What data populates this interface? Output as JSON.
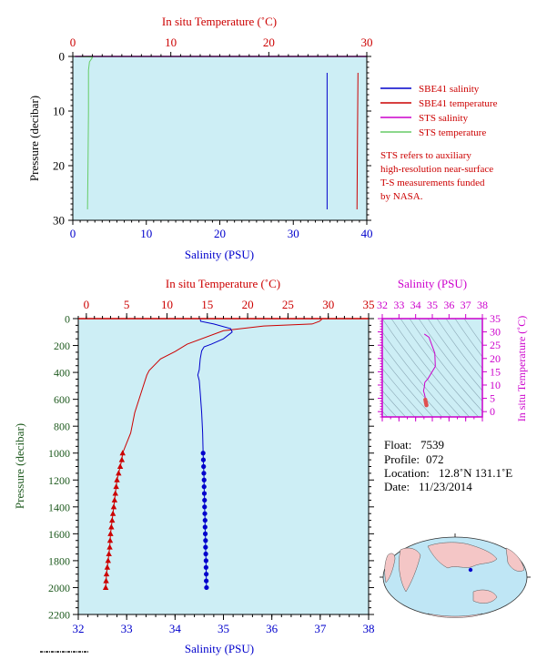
{
  "colors": {
    "plot_bg": "#cdeef5",
    "salinity": "#0000cc",
    "temperature": "#cc0000",
    "sts_salinity": "#cc00cc",
    "sts_temperature": "#66cc66",
    "pressure_label": "#1e5a1e",
    "ts_label": "#cc00cc"
  },
  "chart_data": [
    {
      "id": "near-surface",
      "type": "line",
      "top_axis_label": "In situ Temperature (˚C)",
      "bottom_axis_label": "Salinity (PSU)",
      "ylabel": "Pressure (decibar)",
      "temp_range": [
        0,
        30
      ],
      "temp_ticks": [
        "0",
        "10",
        "20",
        "30"
      ],
      "sal_range": [
        0,
        40
      ],
      "sal_ticks": [
        "0",
        "10",
        "20",
        "30",
        "40"
      ],
      "pressure_range": [
        0,
        30
      ],
      "pressure_ticks": [
        "0",
        "10",
        "20",
        "30"
      ],
      "legend": [
        {
          "label": "SBE41 salinity",
          "color": "#0000cc"
        },
        {
          "label": "SBE41 temperature",
          "color": "#cc0000"
        },
        {
          "label": "STS salinity",
          "color": "#cc00cc"
        },
        {
          "label": "STS temperature",
          "color": "#66cc66"
        }
      ],
      "note": [
        "STS refers to auxiliary",
        "high-resolution near-surface",
        "T-S measurements funded",
        "by NASA."
      ],
      "series": [
        {
          "var": "salinity",
          "color": "#0000cc",
          "points": [
            [
              34.6,
              3
            ],
            [
              34.6,
              28
            ]
          ]
        },
        {
          "var": "temperature",
          "color": "#cc0000",
          "points": [
            [
              29.1,
              3
            ],
            [
              29.05,
              15
            ],
            [
              29.0,
              28
            ]
          ]
        },
        {
          "var": "sts_salinity",
          "color": "#cc00cc",
          "points": [
            [
              0.3,
              0
            ],
            [
              40,
              0
            ]
          ]
        },
        {
          "var": "sts_temperature",
          "color": "#66cc66",
          "points": [
            [
              0.3,
              0
            ],
            [
              1.9,
              0.1
            ],
            [
              2.0,
              0.2
            ],
            [
              1.7,
              1
            ],
            [
              1.6,
              2.5
            ],
            [
              1.6,
              10
            ],
            [
              1.55,
              20
            ],
            [
              1.5,
              28
            ]
          ]
        }
      ]
    },
    {
      "id": "full-profile",
      "type": "line",
      "top_axis_label": "In situ Temperature (˚C)",
      "bottom_axis_label": "Salinity (PSU)",
      "ylabel": "Pressure (decibar)",
      "temp_range": [
        -1,
        35
      ],
      "temp_ticks": [
        "0",
        "5",
        "10",
        "15",
        "20",
        "25",
        "30",
        "35"
      ],
      "sal_range": [
        32,
        38
      ],
      "sal_ticks": [
        "32",
        "33",
        "34",
        "35",
        "36",
        "37",
        "38"
      ],
      "pressure_range": [
        0,
        2200
      ],
      "pressure_ticks": [
        "0",
        "200",
        "400",
        "600",
        "800",
        "1000",
        "1200",
        "1400",
        "1600",
        "1800",
        "2000",
        "2200"
      ],
      "temperature": [
        [
          29.2,
          5
        ],
        [
          28.9,
          20
        ],
        [
          28.0,
          40
        ],
        [
          22.0,
          55
        ],
        [
          17.0,
          90
        ],
        [
          12.5,
          190
        ],
        [
          11.0,
          245
        ],
        [
          9.2,
          300
        ],
        [
          7.8,
          385
        ],
        [
          7.5,
          420
        ],
        [
          6.8,
          550
        ],
        [
          6.0,
          700
        ],
        [
          5.5,
          850
        ],
        [
          4.5,
          1000
        ],
        [
          4.4,
          1050
        ],
        [
          4.2,
          1100
        ],
        [
          4.0,
          1150
        ],
        [
          3.8,
          1200
        ],
        [
          3.7,
          1250
        ],
        [
          3.6,
          1300
        ],
        [
          3.5,
          1350
        ],
        [
          3.4,
          1400
        ],
        [
          3.3,
          1450
        ],
        [
          3.2,
          1500
        ],
        [
          3.1,
          1550
        ],
        [
          3.0,
          1600
        ],
        [
          2.95,
          1650
        ],
        [
          2.9,
          1700
        ],
        [
          2.8,
          1750
        ],
        [
          2.7,
          1800
        ],
        [
          2.6,
          1850
        ],
        [
          2.5,
          1900
        ],
        [
          2.45,
          1950
        ],
        [
          2.4,
          2000
        ]
      ],
      "temperature_markers_from": 1000,
      "salinity": [
        [
          34.52,
          5
        ],
        [
          34.53,
          20
        ],
        [
          34.8,
          40
        ],
        [
          35.15,
          75
        ],
        [
          35.18,
          100
        ],
        [
          35.0,
          150
        ],
        [
          34.75,
          190
        ],
        [
          34.6,
          210
        ],
        [
          34.55,
          240
        ],
        [
          34.52,
          300
        ],
        [
          34.5,
          380
        ],
        [
          34.47,
          420
        ],
        [
          34.5,
          460
        ],
        [
          34.52,
          550
        ],
        [
          34.55,
          700
        ],
        [
          34.57,
          850
        ],
        [
          34.58,
          1000
        ],
        [
          34.585,
          1050
        ],
        [
          34.59,
          1100
        ],
        [
          34.595,
          1150
        ],
        [
          34.6,
          1200
        ],
        [
          34.6,
          1250
        ],
        [
          34.605,
          1300
        ],
        [
          34.61,
          1350
        ],
        [
          34.61,
          1400
        ],
        [
          34.615,
          1450
        ],
        [
          34.62,
          1500
        ],
        [
          34.62,
          1550
        ],
        [
          34.625,
          1600
        ],
        [
          34.63,
          1650
        ],
        [
          34.63,
          1700
        ],
        [
          34.635,
          1750
        ],
        [
          34.64,
          1800
        ],
        [
          34.64,
          1850
        ],
        [
          34.645,
          1900
        ],
        [
          34.645,
          1950
        ],
        [
          34.65,
          2000
        ]
      ],
      "salinity_markers_from": 1000
    },
    {
      "id": "ts-diagram",
      "type": "line",
      "top_axis_label": "Salinity (PSU)",
      "right_axis_label": "In situ Temperature (˚C)",
      "sal_range": [
        32,
        38
      ],
      "sal_ticks": [
        "32",
        "33",
        "34",
        "35",
        "36",
        "37",
        "38"
      ],
      "temp_range": [
        -2,
        35
      ],
      "temp_ticks": [
        "0",
        "5",
        "10",
        "15",
        "20",
        "25",
        "30",
        "35"
      ],
      "points": [
        [
          34.52,
          29.2
        ],
        [
          34.8,
          28.0
        ],
        [
          35.15,
          22.0
        ],
        [
          35.18,
          17.0
        ],
        [
          34.75,
          12.5
        ],
        [
          34.55,
          11.0
        ],
        [
          34.52,
          9.2
        ],
        [
          34.47,
          7.8
        ],
        [
          34.52,
          6.8
        ],
        [
          34.55,
          6.0
        ],
        [
          34.57,
          5.5
        ],
        [
          34.58,
          4.5
        ],
        [
          34.6,
          3.8
        ],
        [
          34.62,
          3.2
        ],
        [
          34.64,
          2.7
        ],
        [
          34.65,
          2.4
        ]
      ]
    }
  ],
  "info": {
    "float_label": "Float:",
    "float_value": "7539",
    "profile_label": "Profile:",
    "profile_value": "072",
    "location_label": "Location:",
    "location_value": "12.8˚N  131.1˚E",
    "date_label": "Date:",
    "date_value": "11/23/2014"
  }
}
